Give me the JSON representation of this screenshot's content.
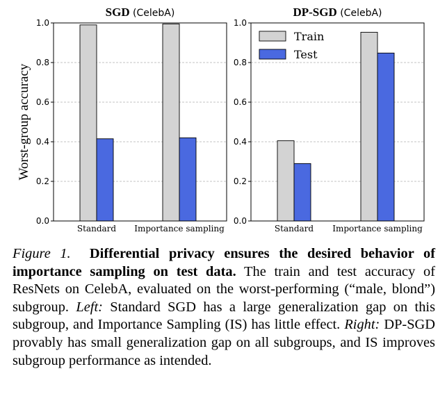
{
  "chart_data": [
    {
      "type": "bar",
      "title_bold": "SGD",
      "title_rest": "(CelebA)",
      "ylabel": "Worst-group accuracy",
      "ylim": [
        0,
        1
      ],
      "yticks": [
        "0.0",
        "0.2",
        "0.4",
        "0.6",
        "0.8",
        "1.0"
      ],
      "categories": [
        "Standard",
        "Importance sampling"
      ],
      "series": [
        {
          "name": "Train",
          "color": "#d3d3d3",
          "values": [
            0.99,
            0.995
          ]
        },
        {
          "name": "Test",
          "color": "#4a69e0",
          "values": [
            0.415,
            0.42
          ]
        }
      ],
      "grid": "horizontal dashed",
      "legend": "none"
    },
    {
      "type": "bar",
      "title_bold": "DP-SGD",
      "title_rest": "(CelebA)",
      "ylabel": "",
      "ylim": [
        0,
        1
      ],
      "yticks": [
        "0.0",
        "0.2",
        "0.4",
        "0.6",
        "0.8",
        "1.0"
      ],
      "categories": [
        "Standard",
        "Importance sampling"
      ],
      "series": [
        {
          "name": "Train",
          "color": "#d3d3d3",
          "values": [
            0.405,
            0.953
          ]
        },
        {
          "name": "Test",
          "color": "#4a69e0",
          "values": [
            0.29,
            0.848
          ]
        }
      ],
      "grid": "horizontal dashed",
      "legend": "top-left"
    }
  ],
  "caption": {
    "label": "Figure 1.",
    "bold": "Differential privacy ensures the desired behavior of importance sampling on test data.",
    "part1": " The train and test accuracy of ResNets on CelebA, evaluated on the worst-performing (“male, blond”) subgroup. ",
    "left_label": "Left:",
    "part2": " Standard SGD has a large generalization gap on this subgroup, and Importance Sampling (IS) has little effect. ",
    "right_label": "Right:",
    "part3": " DP-SGD provably has small generalization gap on all subgroups, and IS improves subgroup performance as intended."
  }
}
